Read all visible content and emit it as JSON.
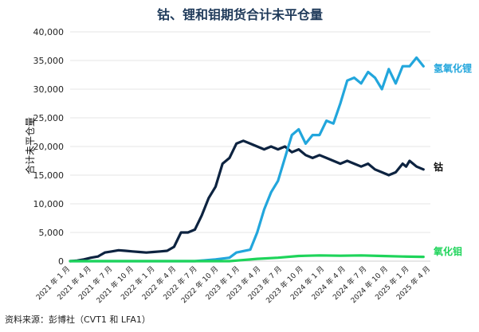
{
  "chart_data": {
    "type": "line",
    "title": "钴、锂和钼期货合计未平仓量",
    "ylabel": "合计未平仓量",
    "source": "资料来源：彭博社（CVT1 和 LFA1）",
    "ylim": [
      0,
      40000
    ],
    "yticks": [
      "0",
      "5,000",
      "10,000",
      "15,000",
      "20,000",
      "25,000",
      "30,000",
      "35,000",
      "40,000"
    ],
    "xlim": [
      0,
      52
    ],
    "xtick_labels": [
      "2021 年 1 月",
      "2021 年 4 月",
      "2021 年 7 月",
      "2021 年 10 月",
      "2022 年 1 月",
      "2022 年 4 月",
      "2022 年 7 月",
      "2022 年 10 月",
      "2023 年 1 月",
      "2023 年 4 月",
      "2023 年 7 月",
      "2023 年 10 月",
      "2024 年 1 月",
      "2024 年 4 月",
      "2024 年 7 月",
      "2024 年 10 月",
      "2025 年 1 月",
      "2025 年 4 月"
    ],
    "grid": true,
    "series": [
      {
        "name": "钴",
        "color": "#0d2340",
        "x": [
          0,
          1,
          2,
          3,
          4,
          5,
          6,
          7,
          8,
          9,
          10,
          11,
          12,
          13,
          14,
          15,
          16,
          17,
          18,
          19,
          20,
          21,
          22,
          23,
          24,
          25,
          26,
          27,
          28,
          29,
          30,
          31,
          32,
          33,
          34,
          35,
          36,
          37,
          38,
          39,
          40,
          41,
          42,
          43,
          44,
          45,
          46,
          47,
          48,
          48.5,
          49,
          49.5,
          50,
          51
        ],
        "values": [
          0,
          100,
          300,
          600,
          800,
          1500,
          1700,
          1900,
          1800,
          1700,
          1600,
          1500,
          1600,
          1700,
          1800,
          2500,
          5000,
          5000,
          5500,
          8000,
          11000,
          13000,
          17000,
          18000,
          20500,
          21000,
          20500,
          20000,
          19500,
          20000,
          19500,
          20000,
          19000,
          19500,
          18500,
          18000,
          18500,
          18000,
          17500,
          17000,
          17500,
          17000,
          16500,
          17000,
          16000,
          15500,
          15000,
          15500,
          17000,
          16500,
          17500,
          17000,
          16500,
          16000
        ]
      },
      {
        "name": "氢氧化锂",
        "color": "#22a6dc",
        "x": [
          0,
          3,
          6,
          9,
          12,
          15,
          18,
          21,
          23,
          24,
          26,
          27,
          28,
          29,
          30,
          31,
          32,
          33,
          34,
          35,
          36,
          37,
          38,
          39,
          40,
          41,
          42,
          43,
          44,
          45,
          46,
          47,
          48,
          49,
          50,
          51
        ],
        "values": [
          0,
          0,
          0,
          0,
          0,
          0,
          0,
          300,
          600,
          1500,
          2000,
          5000,
          9000,
          12000,
          14000,
          18000,
          22000,
          23000,
          20500,
          22000,
          22000,
          24500,
          24000,
          27500,
          31500,
          32000,
          31000,
          33000,
          32000,
          30000,
          33500,
          31000,
          34000,
          34000,
          35500,
          34000
        ]
      },
      {
        "name": "氧化钼",
        "color": "#1ed45a",
        "x": [
          0,
          20,
          23,
          24,
          27,
          30,
          33,
          36,
          39,
          42,
          45,
          48,
          51
        ],
        "values": [
          0,
          0,
          0,
          100,
          400,
          600,
          900,
          1000,
          950,
          1000,
          900,
          800,
          750
        ]
      }
    ]
  }
}
